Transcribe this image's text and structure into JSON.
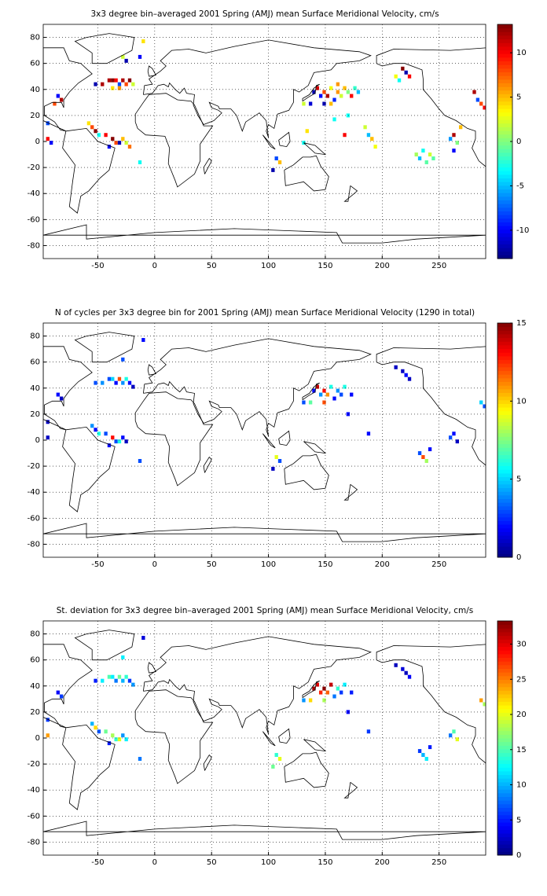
{
  "chart_data": [
    {
      "type": "heatmap",
      "title": "3x3 degree bin–averaged 2001 Spring (AMJ) mean Surface Meridional Velocity, cm/s",
      "xlim": [
        -98,
        291
      ],
      "ylim": [
        -90,
        90
      ],
      "xticks": [
        -50,
        0,
        50,
        100,
        150,
        200,
        250
      ],
      "yticks": [
        -80,
        -60,
        -40,
        -20,
        0,
        20,
        40,
        60,
        80
      ],
      "clim": [
        -13.2,
        13.2
      ],
      "cticks": [
        -10,
        -5,
        0,
        5,
        10
      ],
      "colormap": "jet",
      "grid": true,
      "x": [
        -40,
        -37,
        -34,
        -31,
        -28,
        -25,
        -22,
        -37,
        -31,
        -19,
        -52,
        -46,
        -85,
        -82,
        -88,
        -58,
        -55,
        -52,
        -49,
        -43,
        -37,
        -34,
        -31,
        -28,
        -25,
        -40,
        -22,
        -13,
        -94,
        -94,
        -91,
        -10,
        -25,
        -28,
        -13,
        140,
        143,
        146,
        149,
        152,
        155,
        158,
        161,
        164,
        167,
        170,
        173,
        176,
        137,
        131,
        179,
        149,
        155,
        161,
        170,
        185,
        188,
        191,
        194,
        167,
        158,
        134,
        131,
        212,
        218,
        221,
        224,
        215,
        107,
        110,
        104,
        230,
        233,
        236,
        239,
        242,
        245,
        260,
        263,
        266,
        263,
        269,
        287,
        284,
        281,
        290
      ],
      "y": [
        47,
        47,
        47,
        44,
        47,
        44,
        47,
        41,
        41,
        44,
        44,
        44,
        35,
        32,
        29,
        14,
        11,
        8,
        5,
        5,
        2,
        -1,
        -1,
        2,
        -1,
        -4,
        -4,
        -16,
        14,
        2,
        -1,
        77,
        62,
        65,
        65,
        38,
        41,
        35,
        38,
        35,
        41,
        32,
        38,
        35,
        41,
        38,
        35,
        41,
        29,
        29,
        38,
        29,
        29,
        44,
        20,
        11,
        5,
        2,
        -4,
        5,
        17,
        8,
        -1,
        50,
        56,
        53,
        50,
        47,
        -13,
        -16,
        -22,
        -10,
        -13,
        -7,
        -16,
        -10,
        -13,
        2,
        5,
        -1,
        -7,
        11,
        29,
        32,
        38,
        26
      ],
      "values": [
        12,
        13,
        10,
        -8,
        12,
        8,
        13,
        4,
        6,
        2,
        -12,
        12,
        -10,
        12,
        8,
        4,
        8,
        13,
        -3,
        10,
        13,
        8,
        -12,
        5,
        2,
        -10,
        7,
        -3,
        -8,
        10,
        -10,
        4,
        -12,
        2,
        -10,
        -12,
        11,
        -10,
        8,
        12,
        3,
        -9,
        6,
        2,
        5,
        0,
        10,
        -2,
        -11,
        2,
        -5,
        -12,
        5,
        6,
        -3,
        2,
        -5,
        5,
        3,
        10,
        -3,
        4,
        -3,
        3,
        13,
        -12,
        10,
        -3,
        -8,
        5,
        -12,
        1,
        -5,
        -3,
        -1,
        2,
        -1,
        -6,
        12,
        0,
        -10,
        5,
        8,
        -8,
        12,
        10
      ]
    },
    {
      "type": "heatmap",
      "title": "N of cycles per 3x3 degree bin for 2001 Spring (AMJ) mean Surface Meridional Velocity (1290 in total)",
      "xlim": [
        -98,
        291
      ],
      "ylim": [
        -90,
        90
      ],
      "xticks": [
        -50,
        0,
        50,
        100,
        150,
        200,
        250
      ],
      "yticks": [
        -80,
        -60,
        -40,
        -20,
        0,
        20,
        40,
        60,
        80
      ],
      "clim": [
        0,
        15
      ],
      "cticks": [
        0,
        5,
        10,
        15
      ],
      "colormap": "jet",
      "grid": true,
      "x": [
        -40,
        -37,
        -34,
        -31,
        -28,
        -25,
        -22,
        -19,
        -52,
        -46,
        -85,
        -82,
        -55,
        -52,
        -49,
        -43,
        -37,
        -34,
        -31,
        -28,
        -25,
        -40,
        -13,
        -94,
        -94,
        -10,
        -28,
        140,
        143,
        146,
        149,
        152,
        155,
        158,
        161,
        164,
        167,
        173,
        137,
        131,
        149,
        170,
        188,
        107,
        110,
        104,
        212,
        218,
        221,
        224,
        233,
        236,
        239,
        242,
        260,
        263,
        266,
        287,
        290
      ],
      "y": [
        47,
        47,
        44,
        47,
        44,
        47,
        44,
        41,
        44,
        44,
        35,
        32,
        11,
        8,
        5,
        5,
        2,
        -1,
        -1,
        2,
        -1,
        -4,
        -16,
        14,
        2,
        77,
        62,
        38,
        41,
        35,
        38,
        35,
        41,
        32,
        38,
        35,
        41,
        35,
        29,
        29,
        29,
        20,
        5,
        -13,
        -16,
        -22,
        56,
        53,
        50,
        47,
        -10,
        -13,
        -16,
        -7,
        2,
        5,
        -1,
        29,
        26
      ],
      "values": [
        3,
        5,
        2,
        12,
        4,
        6,
        2,
        1,
        3,
        4,
        2,
        1,
        4,
        2,
        6,
        3,
        13,
        3,
        6,
        2,
        1,
        2,
        3,
        1,
        1,
        2,
        3,
        2,
        14,
        4,
        13,
        11,
        6,
        2,
        4,
        3,
        6,
        2,
        7,
        3,
        12,
        2,
        2,
        9,
        3,
        1,
        1,
        1,
        2,
        1,
        3,
        12,
        8,
        2,
        3,
        2,
        1,
        5,
        3
      ]
    },
    {
      "type": "heatmap",
      "title": "St. deviation for 3x3 degree bin–averaged 2001 Spring (AMJ) mean Surface Meridional Velocity, cm/s",
      "xlim": [
        -98,
        291
      ],
      "ylim": [
        -90,
        90
      ],
      "xticks": [
        -50,
        0,
        50,
        100,
        150,
        200,
        250
      ],
      "yticks": [
        -80,
        -60,
        -40,
        -20,
        0,
        20,
        40,
        60,
        80
      ],
      "clim": [
        0,
        33.3
      ],
      "cticks": [
        0,
        5,
        10,
        15,
        20,
        25,
        30
      ],
      "colormap": "jet",
      "grid": true,
      "x": [
        -40,
        -37,
        -34,
        -31,
        -28,
        -25,
        -22,
        -19,
        -52,
        -46,
        -85,
        -82,
        -55,
        -52,
        -49,
        -43,
        -37,
        -34,
        -31,
        -28,
        -25,
        -40,
        -13,
        -94,
        -94,
        -10,
        -28,
        140,
        143,
        146,
        149,
        152,
        155,
        158,
        161,
        164,
        167,
        173,
        137,
        131,
        149,
        170,
        188,
        107,
        110,
        104,
        212,
        218,
        221,
        224,
        233,
        236,
        239,
        242,
        260,
        263,
        266,
        287,
        290
      ],
      "y": [
        47,
        47,
        44,
        47,
        44,
        47,
        44,
        41,
        44,
        44,
        35,
        32,
        11,
        8,
        5,
        5,
        2,
        -1,
        -1,
        2,
        -1,
        -4,
        -16,
        14,
        2,
        77,
        62,
        38,
        41,
        35,
        38,
        35,
        41,
        32,
        38,
        35,
        41,
        35,
        29,
        29,
        29,
        20,
        5,
        -13,
        -16,
        -22,
        56,
        53,
        50,
        47,
        -10,
        -13,
        -16,
        -7,
        2,
        5,
        -1,
        29,
        26
      ],
      "values": [
        15,
        12,
        8,
        16,
        10,
        14,
        6,
        9,
        5,
        12,
        4,
        6,
        10,
        22,
        7,
        16,
        18,
        14,
        20,
        9,
        12,
        5,
        8,
        6,
        24,
        3,
        12,
        32,
        30,
        28,
        33,
        26,
        31,
        8,
        14,
        6,
        12,
        5,
        22,
        9,
        18,
        4,
        6,
        14,
        20,
        16,
        2,
        3,
        2,
        4,
        6,
        10,
        12,
        5,
        8,
        15,
        20,
        24,
        18
      ]
    }
  ]
}
